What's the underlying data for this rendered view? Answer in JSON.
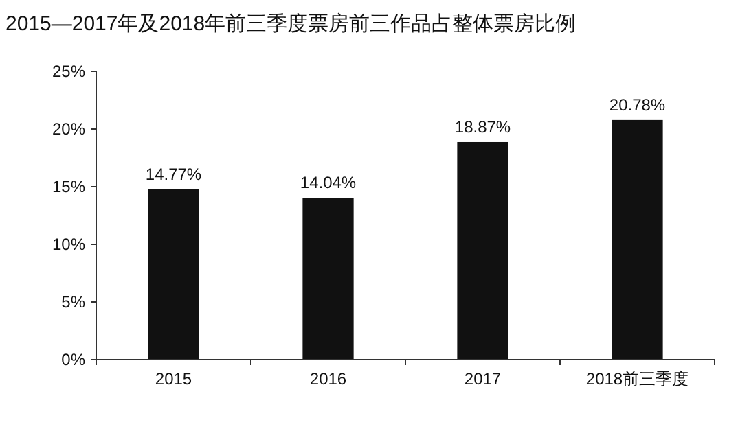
{
  "chart_data": {
    "type": "bar",
    "title": "2015—2017年及2018年前三季度票房前三作品占整体票房比例",
    "categories": [
      "2015",
      "2016",
      "2017",
      "2018前三季度"
    ],
    "values": [
      14.77,
      14.04,
      18.87,
      20.78
    ],
    "value_labels": [
      "14.77%",
      "14.04%",
      "18.87%",
      "20.78%"
    ],
    "color": "#111111",
    "ylim": [
      0,
      25
    ],
    "yticks": [
      {
        "value": 0,
        "label": "0%"
      },
      {
        "value": 5,
        "label": "5%"
      },
      {
        "value": 10,
        "label": "10%"
      },
      {
        "value": 15,
        "label": "15%"
      },
      {
        "value": 20,
        "label": "20%"
      },
      {
        "value": 25,
        "label": "25%"
      }
    ],
    "grid": false
  }
}
